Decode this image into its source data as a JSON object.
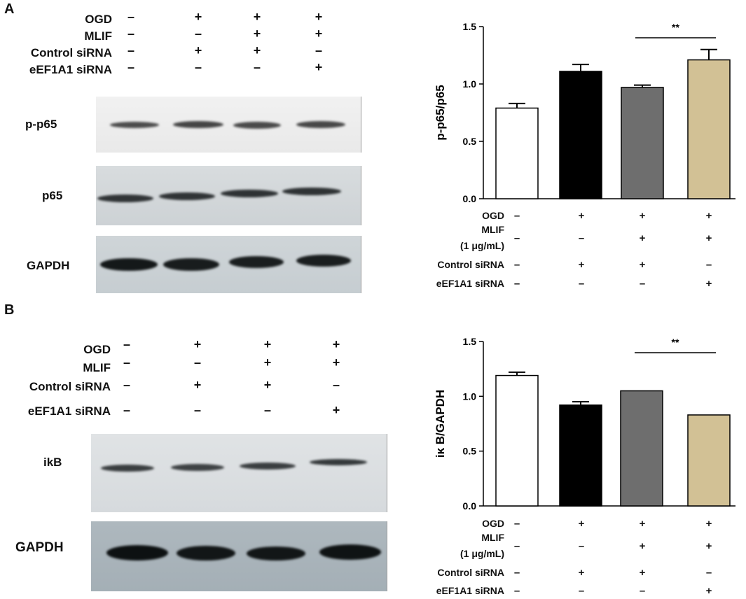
{
  "panels": {
    "A": {
      "letter": "A",
      "conditions": [
        "OGD",
        "MLIF",
        "Control siRNA",
        "eEF1A1 siRNA"
      ],
      "signs": [
        [
          "–",
          "+",
          "+",
          "+"
        ],
        [
          "–",
          "–",
          "+",
          "+"
        ],
        [
          "–",
          "+",
          "+",
          "–"
        ],
        [
          "–",
          "–",
          "–",
          "+"
        ]
      ],
      "blots": [
        "p-p65",
        "p65",
        "GAPDH"
      ]
    },
    "B": {
      "letter": "B",
      "conditions": [
        "OGD",
        "MLIF",
        "Control siRNA",
        "eEF1A1 siRNA"
      ],
      "signs": [
        [
          "–",
          "+",
          "+",
          "+"
        ],
        [
          "–",
          "–",
          "+",
          "+"
        ],
        [
          "–",
          "+",
          "+",
          "–"
        ],
        [
          "–",
          "–",
          "–",
          "+"
        ]
      ],
      "blots": [
        "ikB",
        "GAPDH"
      ]
    }
  },
  "chart_data": [
    {
      "type": "bar",
      "panel": "A",
      "ylabel": "p-p65/p65",
      "ylim": [
        0,
        1.5
      ],
      "yticks": [
        "0.0",
        "0.5",
        "1.0",
        "1.5"
      ],
      "categories": [
        "1",
        "2",
        "3",
        "4"
      ],
      "values": [
        0.79,
        1.11,
        0.97,
        1.21
      ],
      "errors": [
        0.04,
        0.06,
        0.02,
        0.09
      ],
      "colors": [
        "#ffffff",
        "#000000",
        "#6e6e6e",
        "#d2c195"
      ],
      "significance": {
        "label": "**",
        "from": 2,
        "to": 3
      },
      "conditions": [
        "OGD",
        "MLIF",
        "(1 μg/mL)",
        "Control siRNA",
        "eEF1A1 siRNA"
      ],
      "signs": [
        [
          "–",
          "+",
          "+",
          "+"
        ],
        [
          "–",
          "–",
          "+",
          "+"
        ],
        [
          "–",
          "+",
          "+",
          "–"
        ],
        [
          "–",
          "–",
          "–",
          "+"
        ]
      ]
    },
    {
      "type": "bar",
      "panel": "B",
      "ylabel": "iκ B/GAPDH",
      "ylim": [
        0,
        1.5
      ],
      "yticks": [
        "0.0",
        "0.5",
        "1.0",
        "1.5"
      ],
      "categories": [
        "1",
        "2",
        "3",
        "4"
      ],
      "values": [
        1.19,
        0.92,
        1.05,
        0.83
      ],
      "errors": [
        0.03,
        0.03,
        0.0,
        0.0
      ],
      "colors": [
        "#ffffff",
        "#000000",
        "#6e6e6e",
        "#d2c195"
      ],
      "significance": {
        "label": "**",
        "from": 2,
        "to": 3
      },
      "conditions": [
        "OGD",
        "MLIF",
        "(1 μg/mL)",
        "Control siRNA",
        "eEF1A1 siRNA"
      ],
      "signs": [
        [
          "–",
          "+",
          "+",
          "+"
        ],
        [
          "–",
          "–",
          "+",
          "+"
        ],
        [
          "–",
          "+",
          "+",
          "–"
        ],
        [
          "–",
          "–",
          "–",
          "+"
        ]
      ]
    }
  ]
}
